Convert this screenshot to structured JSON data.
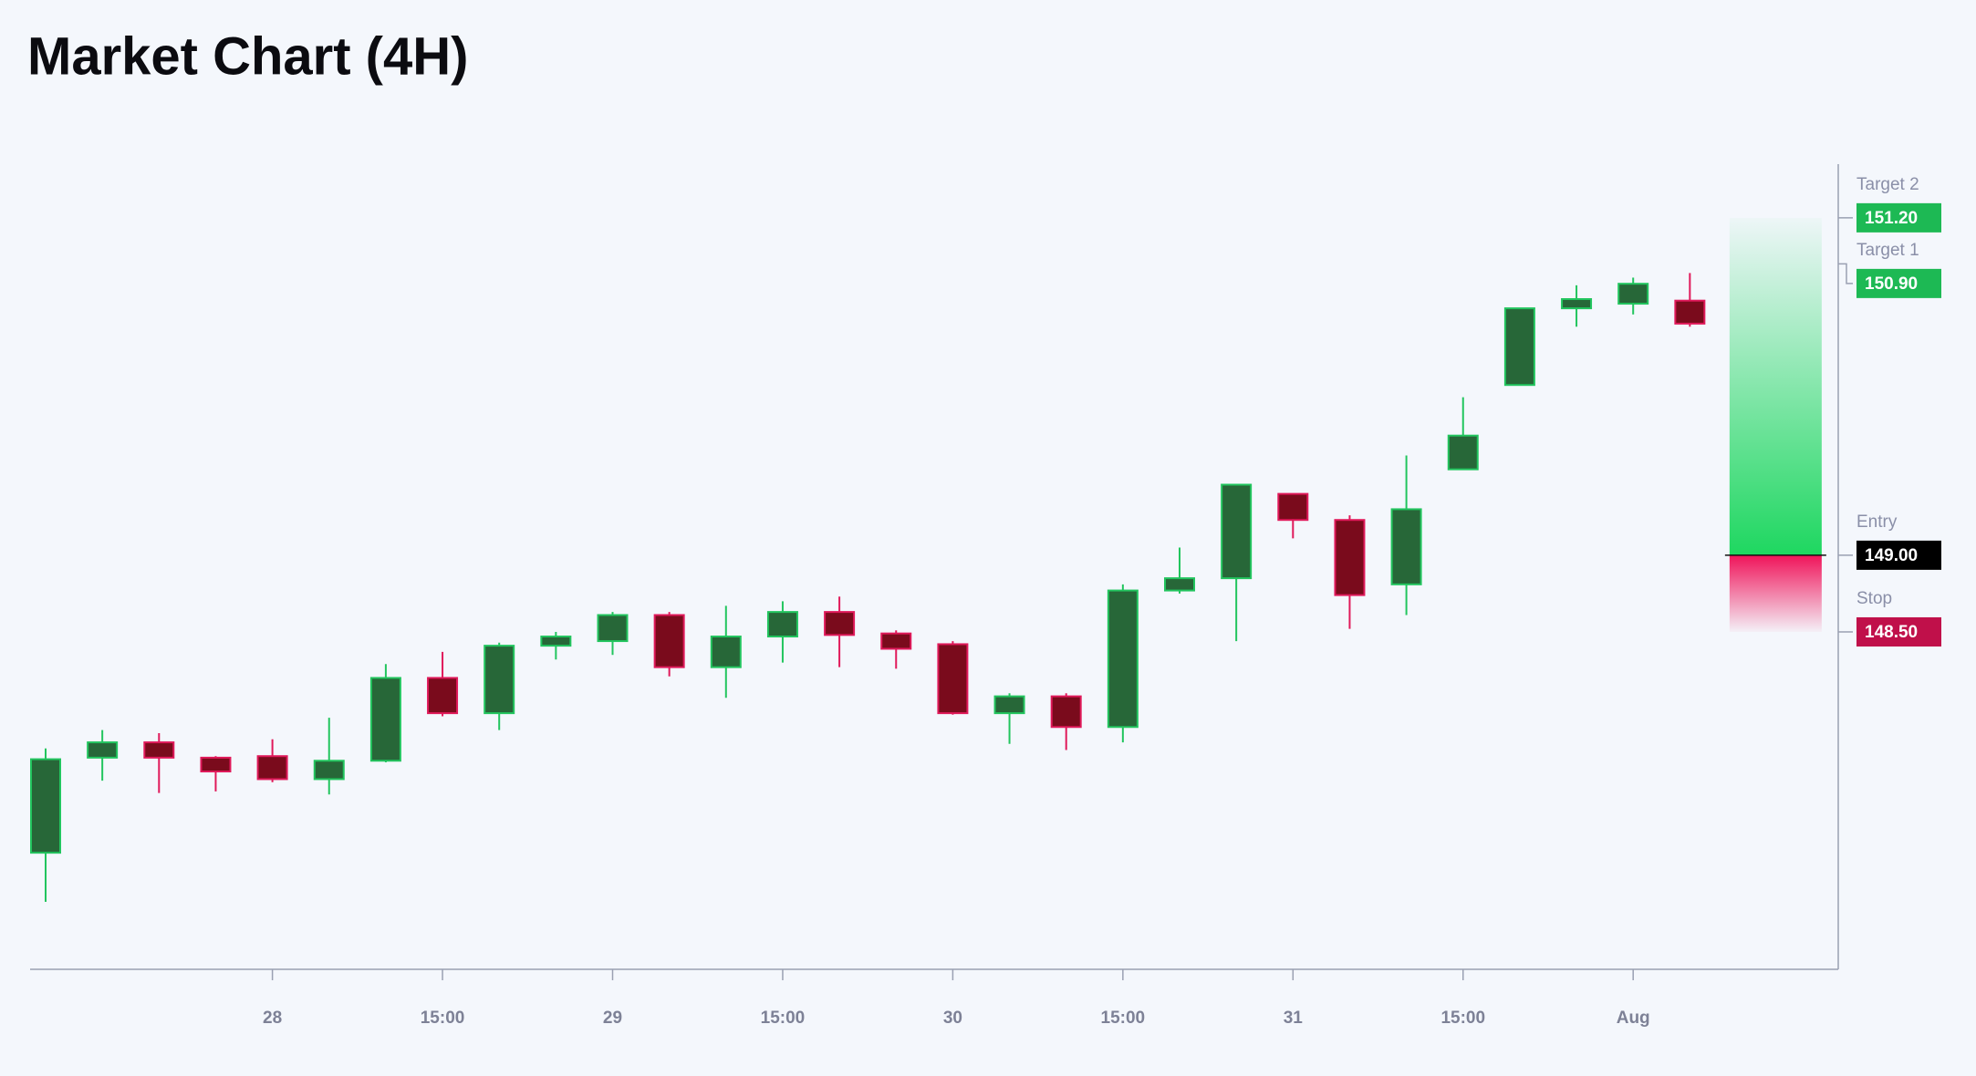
{
  "chart_data": {
    "type": "candlestick",
    "title": "Market Chart (4H)",
    "categories": [
      null,
      null,
      null,
      null,
      "28",
      null,
      null,
      "15:00",
      null,
      null,
      "29",
      null,
      null,
      "15:00",
      null,
      null,
      "30",
      null,
      null,
      "15:00",
      null,
      null,
      "31",
      null,
      null,
      "15:00",
      null,
      null,
      "Aug",
      null
    ],
    "open": [
      147.06,
      147.68,
      147.78,
      147.68,
      147.69,
      147.54,
      147.66,
      148.2,
      147.97,
      148.41,
      148.44,
      148.61,
      148.27,
      148.47,
      148.63,
      148.49,
      148.42,
      147.97,
      148.08,
      147.88,
      148.77,
      148.85,
      149.4,
      149.23,
      148.81,
      149.56,
      150.11,
      150.61,
      150.64,
      150.66
    ],
    "high": [
      147.74,
      147.86,
      147.84,
      147.69,
      147.8,
      147.94,
      148.29,
      148.37,
      148.43,
      148.5,
      148.63,
      148.63,
      148.67,
      148.7,
      148.73,
      148.51,
      148.44,
      148.1,
      148.1,
      148.81,
      149.05,
      149.46,
      149.4,
      149.26,
      149.65,
      150.03,
      150.61,
      150.76,
      150.81,
      150.84
    ],
    "low": [
      146.74,
      147.53,
      147.45,
      147.46,
      147.52,
      147.44,
      147.65,
      147.95,
      147.86,
      148.32,
      148.35,
      148.21,
      148.07,
      148.3,
      148.27,
      148.26,
      147.96,
      147.77,
      147.73,
      147.78,
      148.75,
      148.44,
      149.11,
      148.52,
      148.61,
      149.56,
      150.11,
      150.49,
      150.57,
      150.49
    ],
    "close": [
      147.67,
      147.78,
      147.68,
      147.59,
      147.54,
      147.66,
      148.2,
      147.97,
      148.41,
      148.47,
      148.61,
      148.27,
      148.47,
      148.63,
      148.48,
      148.39,
      147.97,
      148.08,
      147.88,
      148.77,
      148.85,
      149.46,
      149.23,
      148.74,
      149.3,
      149.78,
      150.61,
      150.67,
      150.77,
      150.51
    ],
    "up_color": "#276738",
    "up_edge": "#22c55e",
    "down_color": "#7a0b1c",
    "down_edge": "#e0195a",
    "ylim": [
      146.3,
      151.55
    ],
    "levels": [
      {
        "name": "Target 2",
        "value": 151.2,
        "label": "151.20",
        "color": "#1db954"
      },
      {
        "name": "Target 1",
        "value": 150.9,
        "label": "150.90",
        "color": "#1db954"
      },
      {
        "name": "Entry",
        "value": 149.0,
        "label": "149.00",
        "color": "#000000"
      },
      {
        "name": "Stop",
        "value": 148.5,
        "label": "148.50",
        "color": "#c0104a"
      }
    ]
  }
}
